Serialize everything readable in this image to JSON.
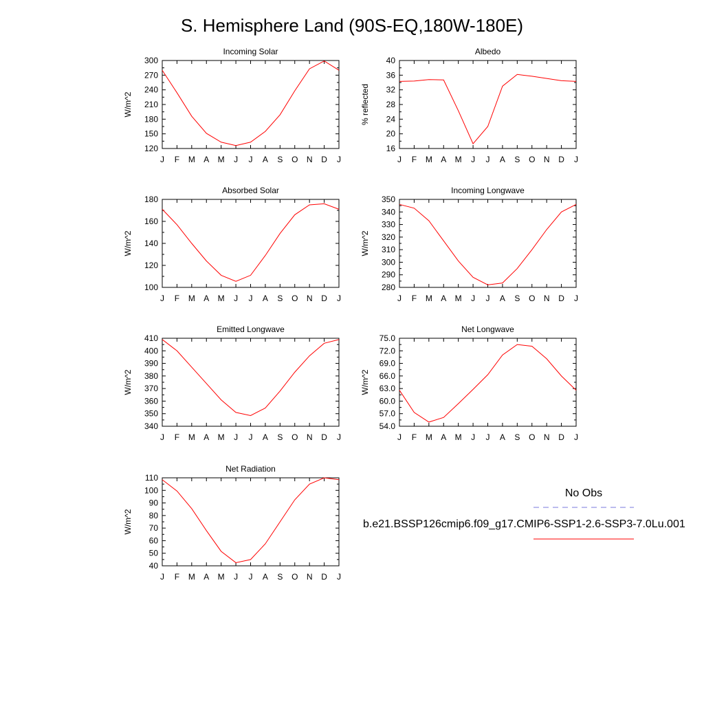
{
  "page": {
    "title": "S. Hemisphere Land (90S-EQ,180W-180E)"
  },
  "legend": {
    "obs_label": "No Obs",
    "obs_color": "#7777dd",
    "model_label": "b.e21.BSSP126cmip6.f09_g17.CMIP6-SSP1-2.6-SSP3-7.0Lu.001",
    "model_color": "#ff0000"
  },
  "chart_data": [
    {
      "type": "line",
      "title": "Incoming Solar",
      "ylabel": "W/m^2",
      "xlabel": "",
      "x": [
        "J",
        "F",
        "M",
        "A",
        "M",
        "J",
        "J",
        "A",
        "S",
        "O",
        "N",
        "D",
        "J"
      ],
      "ylim": [
        120,
        300
      ],
      "yticks": [
        "120",
        "150",
        "180",
        "210",
        "240",
        "270",
        "300"
      ],
      "grid": false,
      "series": [
        {
          "color": "#ff0000",
          "values": [
            280,
            234,
            186,
            151,
            133,
            126,
            133,
            155,
            189,
            238,
            283,
            299,
            280
          ]
        }
      ]
    },
    {
      "type": "line",
      "title": "Albedo",
      "ylabel": "% reflected",
      "xlabel": "",
      "x": [
        "J",
        "F",
        "M",
        "A",
        "M",
        "J",
        "J",
        "A",
        "S",
        "O",
        "N",
        "D",
        "J"
      ],
      "ylim": [
        16,
        40
      ],
      "yticks": [
        "16",
        "20",
        "24",
        "28",
        "32",
        "36",
        "40"
      ],
      "grid": false,
      "series": [
        {
          "color": "#ff0000",
          "values": [
            34.3,
            34.4,
            34.8,
            34.7,
            26.3,
            17.3,
            22.0,
            33.0,
            36.2,
            35.7,
            35.1,
            34.5,
            34.3
          ]
        }
      ]
    },
    {
      "type": "line",
      "title": "Absorbed Solar",
      "ylabel": "W/m^2",
      "xlabel": "",
      "x": [
        "J",
        "F",
        "M",
        "A",
        "M",
        "J",
        "J",
        "A",
        "S",
        "O",
        "N",
        "D",
        "J"
      ],
      "ylim": [
        100,
        180
      ],
      "yticks": [
        "100",
        "120",
        "140",
        "160",
        "180"
      ],
      "grid": false,
      "series": [
        {
          "color": "#ff0000",
          "values": [
            171,
            157,
            140,
            124,
            111,
            105.5,
            111,
            129,
            149,
            166,
            175,
            176,
            171
          ]
        }
      ]
    },
    {
      "type": "line",
      "title": "Incoming Longwave",
      "ylabel": "W/m^2",
      "xlabel": "",
      "x": [
        "J",
        "F",
        "M",
        "A",
        "M",
        "J",
        "J",
        "A",
        "S",
        "O",
        "N",
        "D",
        "J"
      ],
      "ylim": [
        280,
        350
      ],
      "yticks": [
        "280",
        "290",
        "300",
        "310",
        "320",
        "330",
        "340",
        "350"
      ],
      "grid": false,
      "series": [
        {
          "color": "#ff0000",
          "values": [
            346,
            343,
            333,
            317,
            301,
            288,
            282,
            283.5,
            295,
            310,
            326,
            340,
            346
          ]
        }
      ]
    },
    {
      "type": "line",
      "title": "Emitted Longwave",
      "ylabel": "W/m^2",
      "xlabel": "",
      "x": [
        "J",
        "F",
        "M",
        "A",
        "M",
        "J",
        "J",
        "A",
        "S",
        "O",
        "N",
        "D",
        "J"
      ],
      "ylim": [
        340,
        410
      ],
      "yticks": [
        "340",
        "350",
        "360",
        "370",
        "380",
        "390",
        "400",
        "410"
      ],
      "grid": false,
      "series": [
        {
          "color": "#ff0000",
          "values": [
            409,
            400,
            387,
            374,
            361,
            351,
            348.5,
            354.5,
            368,
            383,
            396,
            406,
            409
          ]
        }
      ]
    },
    {
      "type": "line",
      "title": "Net Longwave",
      "ylabel": "W/m^2",
      "xlabel": "",
      "x": [
        "J",
        "F",
        "M",
        "A",
        "M",
        "J",
        "J",
        "A",
        "S",
        "O",
        "N",
        "D",
        "J"
      ],
      "ylim": [
        54,
        75
      ],
      "yticks": [
        "54.0",
        "57.0",
        "60.0",
        "63.0",
        "66.0",
        "69.0",
        "72.0",
        "75.0"
      ],
      "grid": false,
      "series": [
        {
          "color": "#ff0000",
          "values": [
            62.6,
            57.3,
            55.0,
            56.1,
            59.4,
            62.8,
            66.3,
            71.0,
            73.5,
            73.1,
            70.1,
            66.0,
            62.6
          ]
        }
      ]
    },
    {
      "type": "line",
      "title": "Net Radiation",
      "ylabel": "W/m^2",
      "xlabel": "",
      "x": [
        "J",
        "F",
        "M",
        "A",
        "M",
        "J",
        "J",
        "A",
        "S",
        "O",
        "N",
        "D",
        "J"
      ],
      "ylim": [
        40,
        110
      ],
      "yticks": [
        "40",
        "50",
        "60",
        "70",
        "80",
        "90",
        "100",
        "110"
      ],
      "grid": false,
      "series": [
        {
          "color": "#ff0000",
          "values": [
            108.5,
            99.5,
            85.5,
            68.0,
            51.5,
            42.5,
            45.0,
            57.5,
            75.0,
            92.5,
            105.0,
            110.0,
            108.5
          ]
        }
      ]
    }
  ]
}
